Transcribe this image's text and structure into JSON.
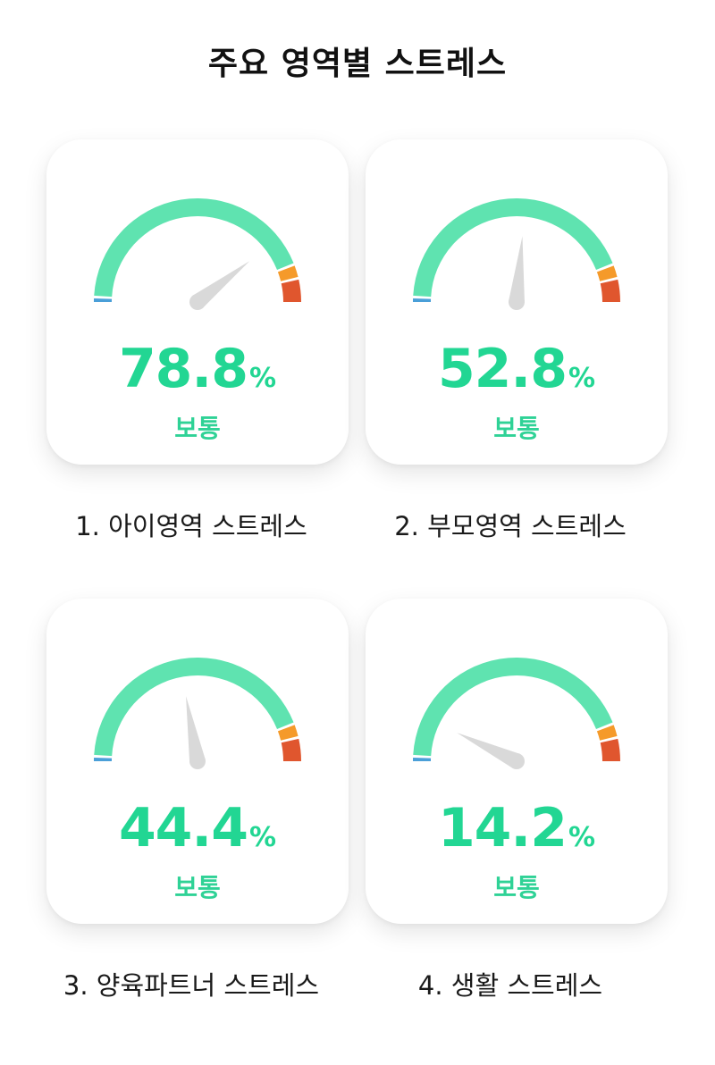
{
  "title": "주요 영역별 스트레스",
  "colors": {
    "gauge_track": "#5fe3b0",
    "gauge_low": "#4a9fd8",
    "gauge_warn": "#f59a2a",
    "gauge_high": "#e0562e",
    "needle": "#d9d9d9",
    "value_text": "#22d693"
  },
  "cards": [
    {
      "index": 1,
      "label": "1. 아이영역 스트레스",
      "value": "78.8",
      "unit": "%",
      "status": "보통",
      "percent": 78.8
    },
    {
      "index": 2,
      "label": "2. 부모영역 스트레스",
      "value": "52.8",
      "unit": "%",
      "status": "보통",
      "percent": 52.8
    },
    {
      "index": 3,
      "label": "3. 양육파트너 스트레스",
      "value": "44.4",
      "unit": "%",
      "status": "보통",
      "percent": 44.4
    },
    {
      "index": 4,
      "label": "4. 생활 스트레스",
      "value": "14.2",
      "unit": "%",
      "status": "보통",
      "percent": 14.2
    }
  ]
}
